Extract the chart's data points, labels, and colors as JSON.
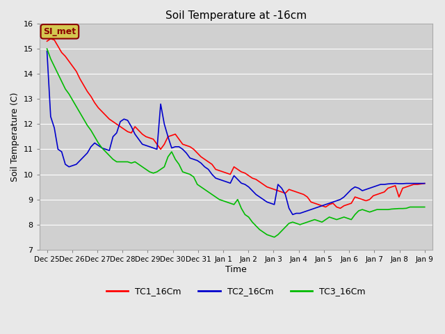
{
  "title": "Soil Temperature at -16cm",
  "xlabel": "Time",
  "ylabel": "Soil Temperature (C)",
  "ylim": [
    7.0,
    16.0
  ],
  "yticks": [
    7.0,
    8.0,
    9.0,
    10.0,
    11.0,
    12.0,
    13.0,
    14.0,
    15.0,
    16.0
  ],
  "bg_color": "#e8e8e8",
  "plot_bg_color": "#d0d0d0",
  "grid_color": "#ffffff",
  "annotation_text": "SI_met",
  "annotation_bg": "#d4c850",
  "annotation_border": "#8b0000",
  "legend_labels": [
    "TC1_16Cm",
    "TC2_16Cm",
    "TC3_16Cm"
  ],
  "legend_colors": [
    "#ff0000",
    "#0000cc",
    "#00bb00"
  ],
  "line_width": 1.2,
  "tc1": [
    15.3,
    15.4,
    15.35,
    15.1,
    14.85,
    14.7,
    14.5,
    14.3,
    14.1,
    13.8,
    13.55,
    13.3,
    13.1,
    12.85,
    12.65,
    12.5,
    12.35,
    12.2,
    12.1,
    12.0,
    11.9,
    11.8,
    11.7,
    11.65,
    11.9,
    11.75,
    11.6,
    11.5,
    11.45,
    11.4,
    11.2,
    11.0,
    11.2,
    11.5,
    11.55,
    11.6,
    11.4,
    11.2,
    11.15,
    11.1,
    11.0,
    10.85,
    10.7,
    10.6,
    10.5,
    10.4,
    10.2,
    10.15,
    10.1,
    10.05,
    10.0,
    10.3,
    10.2,
    10.1,
    10.05,
    9.95,
    9.85,
    9.8,
    9.7,
    9.6,
    9.5,
    9.45,
    9.4,
    9.35,
    9.3,
    9.25,
    9.4,
    9.35,
    9.3,
    9.25,
    9.2,
    9.1,
    8.9,
    8.85,
    8.8,
    8.75,
    8.7,
    8.8,
    8.85,
    8.7,
    8.65,
    8.75,
    8.8,
    8.85,
    9.1,
    9.05,
    9.0,
    8.95,
    9.0,
    9.15,
    9.2,
    9.25,
    9.3,
    9.45,
    9.5,
    9.55,
    9.1,
    9.45,
    9.5,
    9.55,
    9.6,
    9.6,
    9.62,
    9.64
  ],
  "tc2": [
    14.9,
    12.3,
    11.85,
    11.0,
    10.9,
    10.4,
    10.3,
    10.35,
    10.4,
    10.55,
    10.7,
    10.85,
    11.1,
    11.25,
    11.15,
    11.05,
    11.0,
    10.95,
    11.5,
    11.65,
    12.1,
    12.2,
    12.15,
    11.9,
    11.6,
    11.4,
    11.2,
    11.15,
    11.1,
    11.05,
    11.0,
    12.8,
    12.0,
    11.5,
    11.05,
    11.1,
    11.1,
    11.0,
    10.85,
    10.65,
    10.6,
    10.55,
    10.45,
    10.3,
    10.2,
    10.0,
    9.85,
    9.8,
    9.75,
    9.7,
    9.65,
    9.95,
    9.8,
    9.65,
    9.6,
    9.5,
    9.35,
    9.2,
    9.1,
    9.0,
    8.9,
    8.85,
    8.8,
    9.6,
    9.45,
    9.2,
    8.65,
    8.4,
    8.45,
    8.45,
    8.5,
    8.55,
    8.6,
    8.65,
    8.7,
    8.75,
    8.8,
    8.85,
    8.9,
    8.95,
    9.0,
    9.1,
    9.25,
    9.4,
    9.5,
    9.45,
    9.35,
    9.4,
    9.45,
    9.5,
    9.55,
    9.6,
    9.6,
    9.62,
    9.63,
    9.64,
    9.63,
    9.63,
    9.64,
    9.64,
    9.64,
    9.64,
    9.64,
    9.64
  ],
  "tc3": [
    15.0,
    14.6,
    14.3,
    14.0,
    13.7,
    13.4,
    13.2,
    12.95,
    12.7,
    12.45,
    12.2,
    11.95,
    11.75,
    11.5,
    11.25,
    11.05,
    10.9,
    10.75,
    10.6,
    10.5,
    10.5,
    10.5,
    10.5,
    10.45,
    10.5,
    10.4,
    10.3,
    10.2,
    10.1,
    10.05,
    10.1,
    10.2,
    10.3,
    10.7,
    10.9,
    10.6,
    10.4,
    10.1,
    10.05,
    10.0,
    9.9,
    9.6,
    9.5,
    9.4,
    9.3,
    9.2,
    9.1,
    9.0,
    8.95,
    8.9,
    8.85,
    8.8,
    9.0,
    8.65,
    8.4,
    8.3,
    8.1,
    7.95,
    7.8,
    7.7,
    7.6,
    7.55,
    7.5,
    7.6,
    7.75,
    7.9,
    8.05,
    8.1,
    8.05,
    8.0,
    8.05,
    8.1,
    8.15,
    8.2,
    8.15,
    8.1,
    8.2,
    8.3,
    8.25,
    8.2,
    8.25,
    8.3,
    8.25,
    8.2,
    8.4,
    8.55,
    8.6,
    8.55,
    8.5,
    8.55,
    8.6,
    8.6,
    8.6,
    8.6,
    8.62,
    8.63,
    8.64,
    8.64,
    8.65,
    8.7,
    8.7,
    8.7,
    8.7,
    8.7
  ],
  "num_points": 104,
  "x_tick_labels": [
    "Dec 25",
    "Dec 26",
    "Dec 27",
    "Dec 28",
    "Dec 29",
    "Dec 30",
    "Dec 31",
    "Jan 1",
    "Jan 2",
    "Jan 3",
    "Jan 4",
    "Jan 5",
    "Jan 6",
    "Jan 7",
    "Jan 8",
    "Jan 9"
  ],
  "x_tick_step": 6.5
}
